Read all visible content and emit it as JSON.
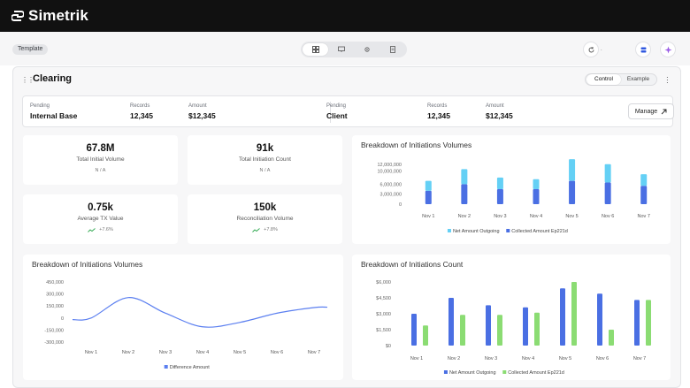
{
  "app": {
    "name": "Simetrik"
  },
  "toolbar": {
    "template_label": "Template",
    "extra_value": "."
  },
  "colors": {
    "blue": "#4a6fe3",
    "light_blue": "#64d0f5",
    "green": "#8bdc73",
    "line": "#5b7ff0"
  },
  "module": {
    "title": "Clearing",
    "mode_options": [
      "Control",
      "Example"
    ],
    "selected_mode": "Control",
    "manage_label": "Manage"
  },
  "summary": {
    "left": {
      "pending_label": "Pending",
      "pending_value": "Internal Base",
      "records_label": "Records",
      "records_value": "12,345",
      "amount_label": "Amount",
      "amount_value": "$12,345"
    },
    "right": {
      "pending_label": "Pending",
      "pending_value": "Client",
      "records_label": "Records",
      "records_value": "12,345",
      "amount_label": "Amount",
      "amount_value": "$12,345"
    }
  },
  "kpis": [
    {
      "value": "67.8M",
      "label": "Total Initial Volume",
      "sub": "N / A"
    },
    {
      "value": "91k",
      "label": "Total Initiation Count",
      "sub": "N / A"
    },
    {
      "value": "0.75k",
      "label": "Average TX Value",
      "sub": "+7.6%"
    },
    {
      "value": "150k",
      "label": "Reconciliation Volume",
      "sub": "+7.8%"
    }
  ],
  "chart_data": [
    {
      "type": "bar",
      "title": "Breakdown of Initiations Volumes",
      "stacked": true,
      "categories": [
        "Nov 1",
        "Nov 2",
        "Nov 3",
        "Nov 4",
        "Nov 5",
        "Nov 6",
        "Nov 7"
      ],
      "yticks": [
        "12,000,000",
        "10,000,000",
        "6,000,000",
        "3,000,000",
        "0"
      ],
      "ylim": [
        0,
        13000000
      ],
      "series": [
        {
          "name": "Net Amount Outgoing",
          "color": "#64d0f5",
          "values": [
            3000000,
            4500000,
            3500000,
            3000000,
            6500000,
            5500000,
            3500000
          ]
        },
        {
          "name": "Collected Amount Ep221d",
          "color": "#4a6fe3",
          "values": [
            4000000,
            6000000,
            4500000,
            4500000,
            7000000,
            6500000,
            5500000
          ]
        }
      ],
      "legend": "bottom"
    },
    {
      "type": "line",
      "title": "Breakdown of Initiations Volumes",
      "categories": [
        "Nov 1",
        "Nov 2",
        "Nov 3",
        "Nov 4",
        "Nov 5",
        "Nov 6",
        "Nov 7"
      ],
      "yticks": [
        "450,000",
        "300,000",
        "150,000",
        "0",
        "-150,000",
        "-300,000"
      ],
      "ylim": [
        -300000,
        450000
      ],
      "series": [
        {
          "name": "Difference Amount",
          "color": "#5b7ff0",
          "values": [
            0,
            255000,
            60000,
            -110000,
            -55000,
            60000,
            130000
          ]
        }
      ],
      "legend": "bottom"
    },
    {
      "type": "bar",
      "title": "Breakdown of Initiations Count",
      "categories": [
        "Nov 1",
        "Nov 2",
        "Nov 3",
        "Nov 4",
        "Nov 5",
        "Nov 6",
        "Nov 7"
      ],
      "yticks": [
        "$6,000",
        "$4,500",
        "$3,000",
        "$1,500",
        "$0"
      ],
      "ylim": [
        0,
        6000
      ],
      "series": [
        {
          "name": "Net Amount Outgoing",
          "color": "#4a6fe3",
          "values": [
            3000,
            4500,
            3800,
            3600,
            5400,
            4900,
            4300
          ]
        },
        {
          "name": "Collected Amount Ep221d",
          "color": "#8bdc73",
          "values": [
            1900,
            2900,
            2900,
            3100,
            6000,
            1500,
            4300
          ]
        }
      ],
      "legend": "bottom"
    }
  ]
}
